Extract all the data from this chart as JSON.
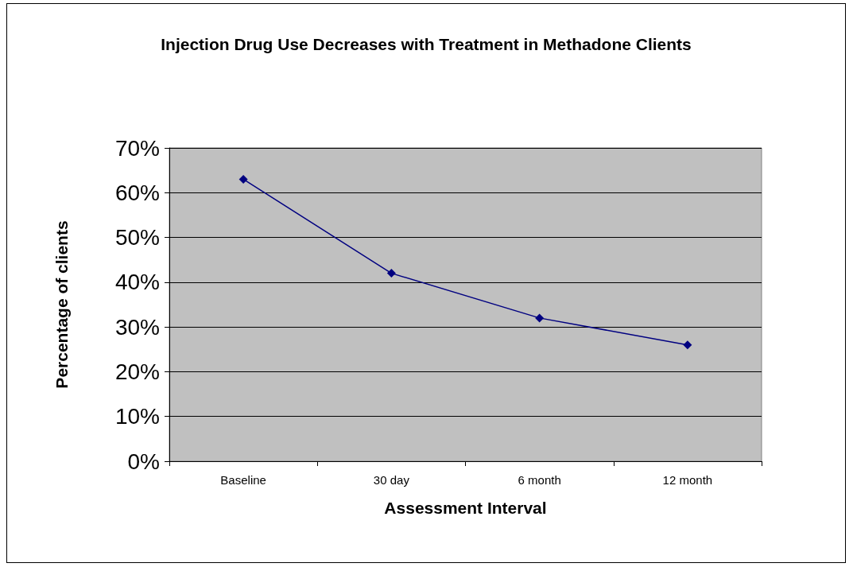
{
  "chart_data": {
    "type": "line",
    "title": "Injection Drug Use Decreases with Treatment in Methadone Clients",
    "xlabel": "Assessment Interval",
    "ylabel": "Percentage of clients",
    "categories": [
      "Baseline",
      "30 day",
      "6 month",
      "12 month"
    ],
    "series": [
      {
        "color": "#000080",
        "values": [
          63,
          42,
          32,
          26
        ]
      }
    ],
    "ylim": [
      0,
      70
    ],
    "yticks": [
      {
        "value": 0,
        "label": "0%"
      },
      {
        "value": 10,
        "label": "10%"
      },
      {
        "value": 20,
        "label": "20%"
      },
      {
        "value": 30,
        "label": "30%"
      },
      {
        "value": 40,
        "label": "40%"
      },
      {
        "value": 50,
        "label": "50%"
      },
      {
        "value": 60,
        "label": "60%"
      },
      {
        "value": 70,
        "label": "70%"
      }
    ],
    "grid": "y",
    "marker": "diamond",
    "line_style": "solid"
  }
}
